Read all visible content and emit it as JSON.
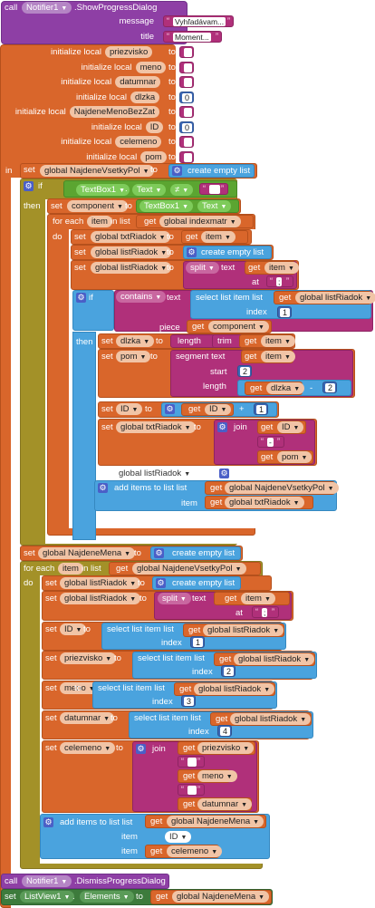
{
  "notify": {
    "call": "call",
    "component": "Notifier1",
    "method": ".ShowProgressDialog",
    "message_label": "message",
    "message_value": "Vyhľadávam...",
    "title_label": "title",
    "title_value": "Moment..."
  },
  "locals": [
    {
      "label": "initialize local",
      "name": "priezvisko",
      "to": "to",
      "kind": "text"
    },
    {
      "label": "initialize local",
      "name": "meno",
      "to": "to",
      "kind": "text"
    },
    {
      "label": "initialize local",
      "name": "datumnar",
      "to": "to",
      "kind": "text"
    },
    {
      "label": "initialize local",
      "name": "dlzka",
      "to": "to",
      "kind": "num",
      "value": "0"
    },
    {
      "label": "initialize local",
      "name": "NajdeneMenoBezZat",
      "to": "to",
      "kind": "text"
    },
    {
      "label": "initialize local",
      "name": "ID",
      "to": "to",
      "kind": "num",
      "value": "0"
    },
    {
      "label": "initialize local",
      "name": "celemeno",
      "to": "to",
      "kind": "text"
    },
    {
      "label": "initialize local",
      "name": "pom",
      "to": "to",
      "kind": "text"
    }
  ],
  "kw": {
    "in": "in",
    "set": "set",
    "get": "get",
    "to": "to",
    "if": "if",
    "then": "then",
    "do": "do",
    "for_each": "for each",
    "in_list": "in list",
    "create_empty_list": "create empty list",
    "split": "split",
    "text": "text",
    "at": "at",
    "contains": "contains",
    "piece": "piece",
    "select_list_item": "select list item  list",
    "index": "index",
    "length": "length",
    "trim": "trim",
    "segment": "segment  text",
    "start": "start",
    "join": "join",
    "add_items": "add items to list  list",
    "item": "item",
    "plus": "+",
    "minus": "-",
    "neq": "≠",
    "dot": "."
  },
  "vars": {
    "g_all": "global NajdeneVsetkyPol",
    "g_indexmatr": "global indexmatr",
    "g_txt": "global txtRiadok",
    "g_list": "global listRiadok",
    "g_mena": "global NajdeneMena",
    "item": "item",
    "component": "component",
    "dlzka": "dlzka",
    "pom": "pom",
    "ID": "ID",
    "priezvisko": "priezvisko",
    "meno": "meno",
    "datumnar": "datumnar",
    "celemeno": "celemeno"
  },
  "comp": {
    "textbox": "TextBox1",
    "text_prop": "Text",
    "notifier": "Notifier1",
    "dismiss": ".DismissProgressDialog",
    "listview": "ListView1",
    "elements": "Elements"
  },
  "literals": {
    "semicolon": ";",
    "dash": "-",
    "num0": "0",
    "num1": "1",
    "num2": "2",
    "num3": "3",
    "num4": "4"
  },
  "misc": {
    "global_listRiadok_getter": "global listRiadok",
    "id_getter": "ID"
  }
}
